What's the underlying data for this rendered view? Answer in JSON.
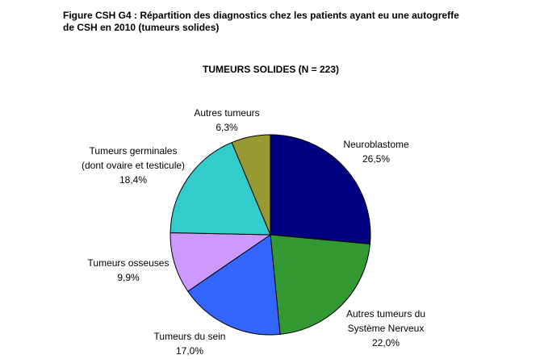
{
  "figure": {
    "title_line1": "Figure CSH G4 : Répartition des diagnostics chez les patients ayant eu une autogreffe",
    "title_line2": "de CSH en 2010 (tumeurs solides)"
  },
  "chart_data": {
    "type": "pie",
    "title": "TUMEURS SOLIDES (N = 223)",
    "start_angle_deg": 0,
    "direction": "clockwise",
    "slices": [
      {
        "label_lines": [
          "Neuroblastome"
        ],
        "value": 26.5,
        "value_label": "26,5%",
        "color": "#000080"
      },
      {
        "label_lines": [
          "Autres tumeurs du",
          "Système Nerveux"
        ],
        "value": 22.0,
        "value_label": "22,0%",
        "color": "#339933"
      },
      {
        "label_lines": [
          "Tumeurs du sein"
        ],
        "value": 17.0,
        "value_label": "17,0%",
        "color": "#3366FF"
      },
      {
        "label_lines": [
          "Tumeurs osseuses"
        ],
        "value": 9.9,
        "value_label": "9,9%",
        "color": "#CC99FF"
      },
      {
        "label_lines": [
          "Tumeurs germinales",
          "(dont ovaire et testicule)"
        ],
        "value": 18.4,
        "value_label": "18,4%",
        "color": "#33CCCC"
      },
      {
        "label_lines": [
          "Autres tumeurs"
        ],
        "value": 6.3,
        "value_label": "6,3%",
        "color": "#999933"
      }
    ]
  }
}
